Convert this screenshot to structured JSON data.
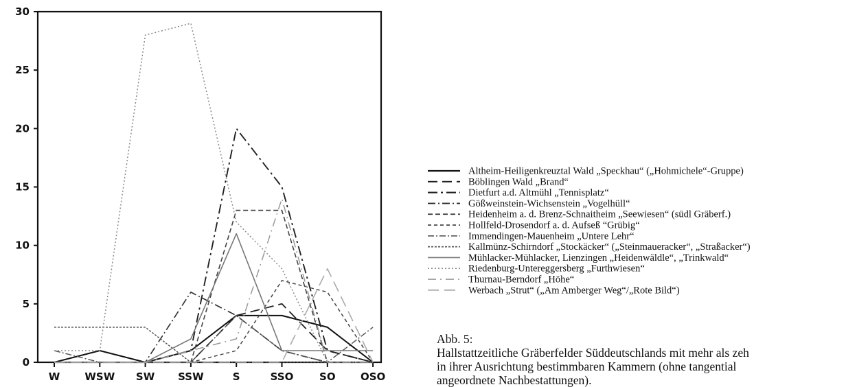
{
  "chart_data": {
    "type": "line",
    "categories": [
      "W",
      "WSW",
      "SW",
      "SSW",
      "S",
      "SSO",
      "SO",
      "OSO"
    ],
    "ylim": [
      0,
      30
    ],
    "yticks": [
      0,
      5,
      10,
      15,
      20,
      25,
      30
    ],
    "grid": false,
    "legend_position": "right",
    "series": [
      {
        "name": "Altheim-Heiligenkreuztal Wald „Speckhau“ („Hohmichele“-Gruppe)",
        "values": [
          0,
          1,
          0,
          1,
          4,
          4,
          3,
          0
        ],
        "color": "#111111"
      },
      {
        "name": "Böblingen Wald „Brand“",
        "values": [
          0,
          0,
          0,
          0,
          4,
          5,
          1,
          0
        ],
        "color": "#222222"
      },
      {
        "name": "Dietfurt a.d. Altmühl „Tennisplatz“",
        "values": [
          0,
          0,
          0,
          1,
          20,
          15,
          1,
          0
        ],
        "color": "#222222"
      },
      {
        "name": "Gößweinstein-Wichsenstein „Vogelhüll“",
        "values": [
          0,
          0,
          0,
          6,
          4,
          1,
          0,
          0
        ],
        "color": "#333333"
      },
      {
        "name": "Heidenheim a. d. Brenz-Schnaitheim „Seewiesen“ (südl Gräberf.)",
        "values": [
          0,
          0,
          0,
          0,
          13,
          13,
          0,
          0
        ],
        "color": "#444444"
      },
      {
        "name": "Hollfeld-Drosendorf a. d. Aufseß “Grübig“",
        "values": [
          0,
          0,
          0,
          0,
          1,
          7,
          6,
          0
        ],
        "color": "#444444"
      },
      {
        "name": "Immendingen-Mauenheim „Untere Lehr“",
        "values": [
          1,
          0,
          0,
          0,
          4,
          1,
          0,
          3
        ],
        "color": "#555555"
      },
      {
        "name": "Kallmünz-Schirndorf „Stockäcker“ („Steinmaueracker“, „Straßacker“)",
        "values": [
          3,
          3,
          3,
          0,
          0,
          0,
          0,
          0
        ],
        "color": "#555555"
      },
      {
        "name": "Mühlacker-Mühlacker, Lienzingen „Heidenwäldle“, „Trinkwald“",
        "values": [
          0,
          0,
          0,
          2,
          11,
          1,
          1,
          1
        ],
        "color": "#777777"
      },
      {
        "name": "Riedenburg-Untereggersberg „Furthwiesen“",
        "values": [
          1,
          1,
          28,
          29,
          12,
          8,
          0,
          0
        ],
        "color": "#888888"
      },
      {
        "name": "Thurnau-Berndorf „Höhe“",
        "values": [
          0,
          0,
          0,
          1,
          2,
          14,
          0,
          0
        ],
        "color": "#999999"
      },
      {
        "name": "Werbach „Strut“ („Am Amberger Weg“/„Rote Bild“)",
        "values": [
          0,
          0,
          0,
          0,
          0,
          0,
          8,
          0
        ],
        "color": "#aaaaaa"
      }
    ]
  },
  "caption": {
    "line1": "Abb. 5:",
    "line2": "Hallstattzeitliche Gräberfelder Süddeutschlands mit mehr als zeh",
    "line3": "in ihrer Ausrichtung bestimmbaren Kammern (ohne tangential",
    "line4": "angeordnete Nachbestattungen)."
  }
}
